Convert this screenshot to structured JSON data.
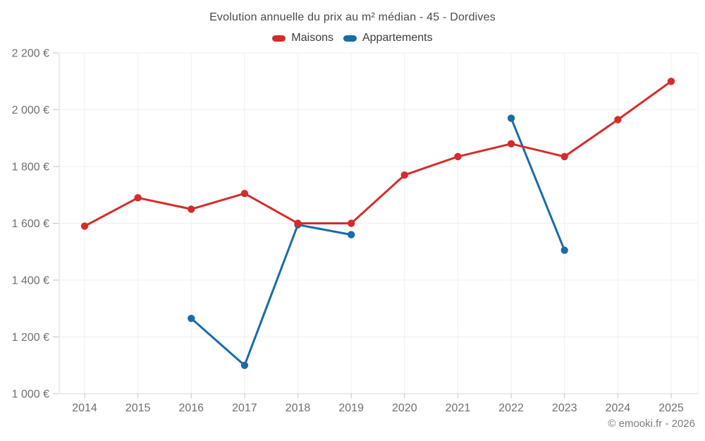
{
  "header": {
    "title": "Evolution annuelle du prix au m² médian - 45 - Dordives"
  },
  "legend": {
    "items": [
      {
        "label": "Maisons",
        "color": "#d62b2b"
      },
      {
        "label": "Appartements",
        "color": "#1a6ca6"
      }
    ]
  },
  "footer": {
    "copyright": "© emooki.fr - 2026"
  },
  "chart_data": {
    "type": "line",
    "title": "Evolution annuelle du prix au m² médian - 45 - Dordives",
    "x": [
      "2014",
      "2015",
      "2016",
      "2017",
      "2018",
      "2019",
      "2020",
      "2021",
      "2022",
      "2023",
      "2024",
      "2025"
    ],
    "series": [
      {
        "name": "Maisons",
        "color": "#d62b2b",
        "values": [
          1590,
          1690,
          1650,
          1705,
          1600,
          1600,
          1770,
          1835,
          1880,
          1835,
          1965,
          2100
        ]
      },
      {
        "name": "Appartements",
        "color": "#1a6ca6",
        "values": [
          null,
          null,
          1265,
          1100,
          1595,
          1560,
          null,
          null,
          1970,
          1505,
          null,
          null
        ]
      }
    ],
    "xlabel": "",
    "ylabel": "",
    "ylim": [
      1000,
      2200
    ],
    "y_ticks": [
      1000,
      1200,
      1400,
      1600,
      1800,
      2000,
      2200
    ],
    "y_tick_labels": [
      "1 000 €",
      "1 200 €",
      "1 400 €",
      "1 600 €",
      "1 800 €",
      "2 000 €",
      "2 200 €"
    ],
    "grid": true,
    "legend_position": "top",
    "grid_color": "#efefef",
    "axis_color": "#d8d8d8",
    "tick_color": "#c6c6c6"
  }
}
